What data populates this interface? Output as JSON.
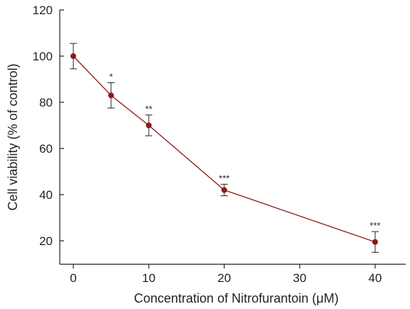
{
  "chart_data": {
    "type": "line",
    "title": "",
    "xlabel": "Concentration of Nitrofurantoin (μM)",
    "ylabel": "Cell viability (% of control)",
    "xlim": [
      0,
      40
    ],
    "ylim": [
      10,
      120
    ],
    "xticks": [
      0,
      10,
      20,
      30,
      40
    ],
    "yticks": [
      20,
      40,
      60,
      80,
      100,
      120
    ],
    "grid": false,
    "legend": "none",
    "series": [
      {
        "color": "#8b1a1a",
        "points": [
          {
            "x": 0,
            "y": 100,
            "err": 5.5,
            "sig": ""
          },
          {
            "x": 5,
            "y": 83,
            "err": 5.5,
            "sig": "*"
          },
          {
            "x": 10,
            "y": 70,
            "err": 4.5,
            "sig": "**"
          },
          {
            "x": 20,
            "y": 42,
            "err": 2.5,
            "sig": "***"
          },
          {
            "x": 40,
            "y": 19.5,
            "err": 4.5,
            "sig": "***"
          }
        ]
      }
    ]
  }
}
